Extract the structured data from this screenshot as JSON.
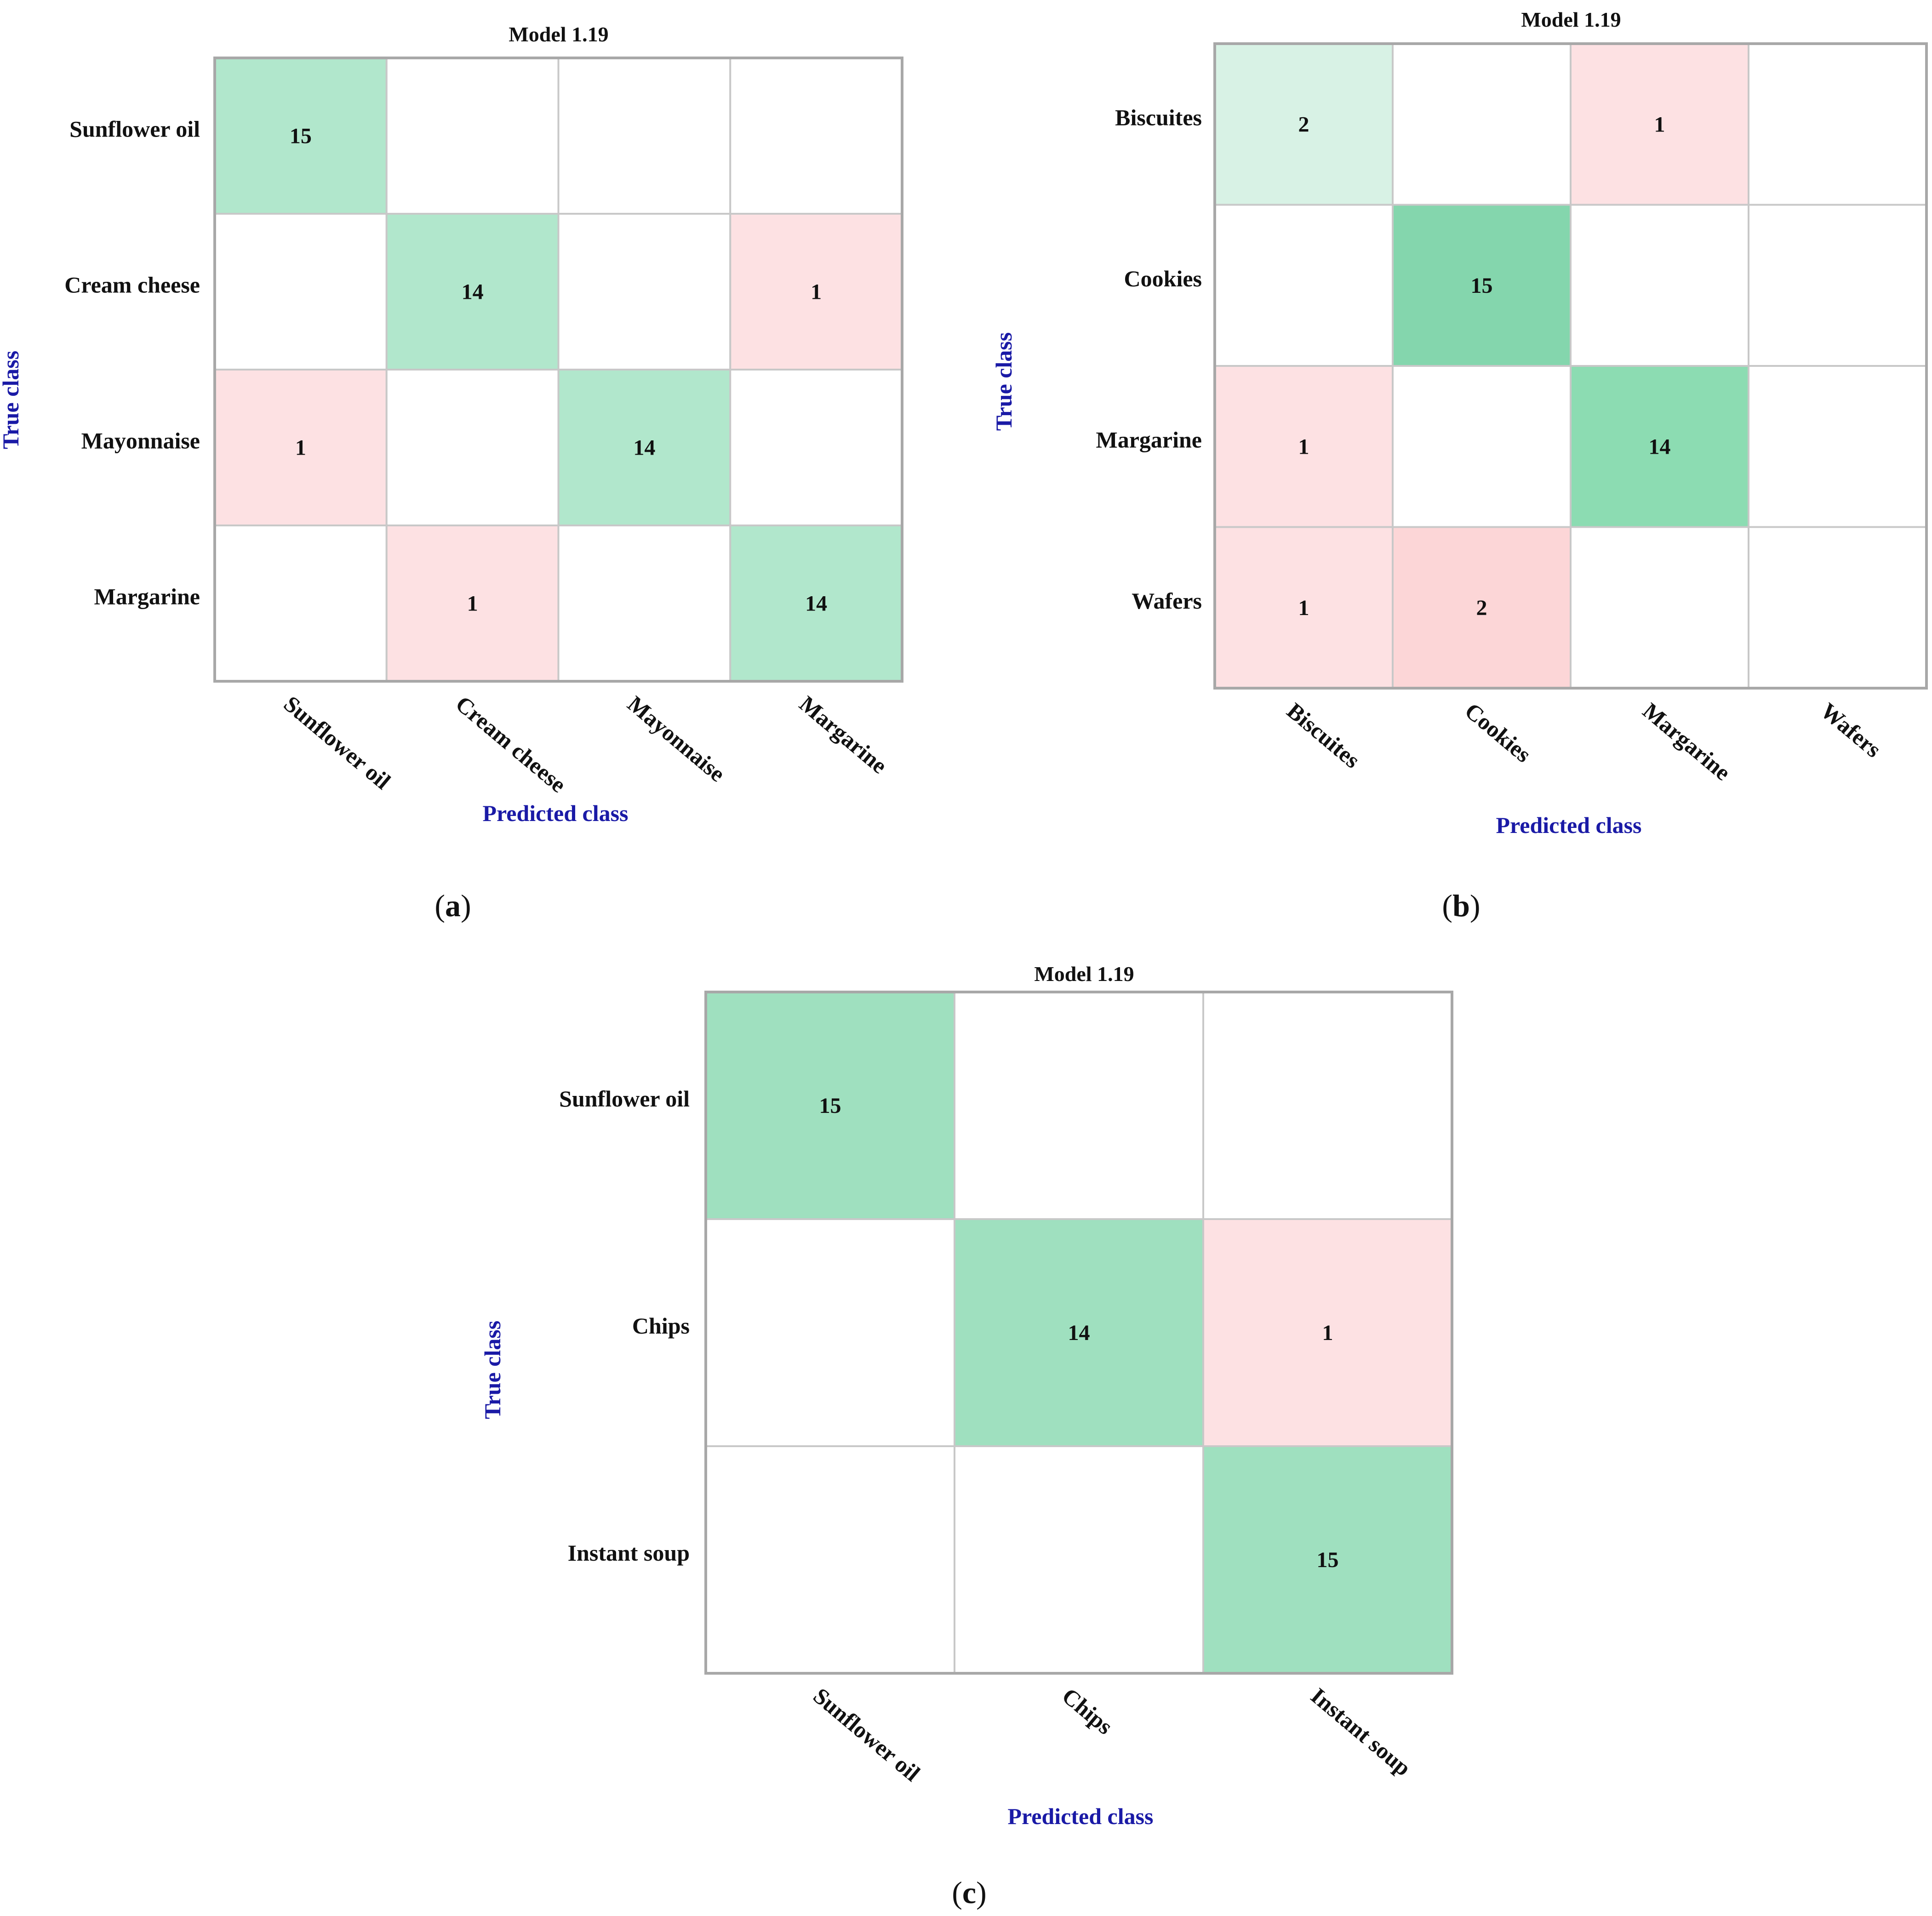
{
  "chart_data": [
    {
      "type": "heatmap",
      "panel": "a",
      "panel_label": [
        "(",
        "a",
        ")"
      ],
      "title": "Model 1.19",
      "xlabel": "Predicted class",
      "ylabel": "True class",
      "row_labels": [
        "Sunflower oil",
        "Cream cheese",
        "Mayonnaise",
        "Margarine"
      ],
      "col_labels": [
        "Sunflower oil",
        "Cream cheese",
        "Mayonnaise",
        "Margarine"
      ],
      "matrix": [
        [
          15,
          null,
          null,
          null
        ],
        [
          null,
          14,
          null,
          1
        ],
        [
          1,
          null,
          14,
          null
        ],
        [
          null,
          1,
          null,
          14
        ]
      ]
    },
    {
      "type": "heatmap",
      "panel": "b",
      "panel_label": [
        "(",
        "b",
        ")"
      ],
      "title": "Model 1.19",
      "xlabel": "Predicted class",
      "ylabel": "True class",
      "row_labels": [
        "Biscuites",
        "Cookies",
        "Margarine",
        "Wafers"
      ],
      "col_labels": [
        "Biscuites",
        "Cookies",
        "Margarine",
        "Wafers"
      ],
      "matrix": [
        [
          2,
          null,
          1,
          null
        ],
        [
          null,
          15,
          null,
          null
        ],
        [
          1,
          null,
          14,
          null
        ],
        [
          1,
          2,
          null,
          null
        ]
      ]
    },
    {
      "type": "heatmap",
      "panel": "c",
      "panel_label": [
        "(",
        "c",
        ")"
      ],
      "title": "Model 1.19",
      "xlabel": "Predicted class",
      "ylabel": "True class",
      "row_labels": [
        "Sunflower oil",
        "Chips",
        "Instant soup"
      ],
      "col_labels": [
        "Sunflower oil",
        "Chips",
        "Instant soup"
      ],
      "matrix": [
        [
          15,
          null,
          null
        ],
        [
          null,
          14,
          1
        ],
        [
          null,
          null,
          15
        ]
      ]
    }
  ],
  "colors": {
    "diag_strong": "#84d6ad",
    "diag_medium": "#9fe0bf",
    "diag_light": "#b1e7cc",
    "diag_faint": "#d8f2e5",
    "off_diag_light": "#fde1e3",
    "off_diag_medium": "#fcd6d7",
    "empty": "#ffffff",
    "grid": "#c8c8c8",
    "axis_title": "#1a1aa6"
  }
}
